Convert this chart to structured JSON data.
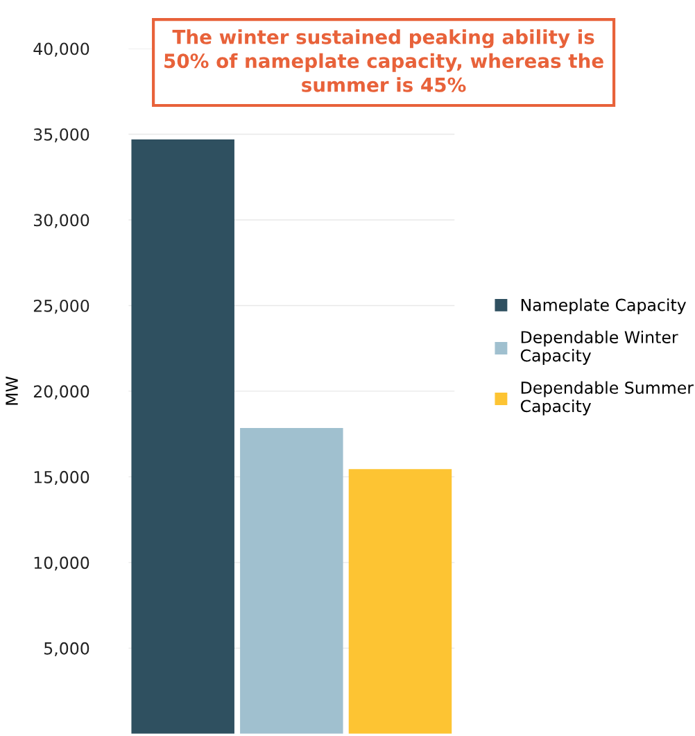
{
  "chart_data": {
    "type": "bar",
    "categories": [
      null
    ],
    "series": [
      {
        "name": "Nameplate Capacity",
        "color": "#2f5060",
        "values": [
          34700
        ]
      },
      {
        "name": "Dependable Winter\nCapacity",
        "color": "#a0c0cf",
        "values": [
          17850
        ]
      },
      {
        "name": "Dependable Summer\nCapacity",
        "color": "#fdc433",
        "values": [
          15450
        ]
      }
    ],
    "ylabel": "MW",
    "ylim": [
      0,
      40000
    ],
    "yticks": [
      {
        "value": 5000,
        "label": "5,000"
      },
      {
        "value": 10000,
        "label": "10,000"
      },
      {
        "value": 15000,
        "label": "15,000"
      },
      {
        "value": 20000,
        "label": "20,000"
      },
      {
        "value": 25000,
        "label": "25,000"
      },
      {
        "value": 30000,
        "label": "30,000"
      },
      {
        "value": 35000,
        "label": "35,000"
      },
      {
        "value": 40000,
        "label": "40,000"
      }
    ],
    "grid": "y",
    "legend": "right",
    "annotations": [
      "The winter sustained peaking ability is\n50% of nameplate capacity, whereas the\nsummer is 45%"
    ]
  }
}
